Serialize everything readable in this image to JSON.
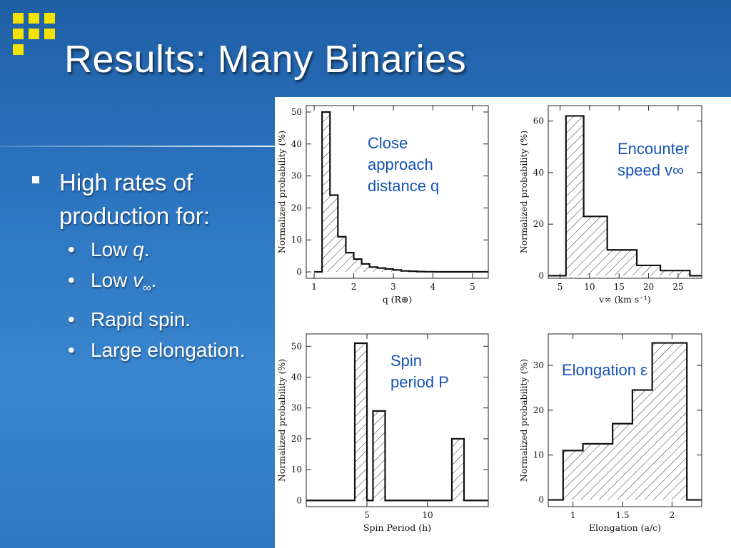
{
  "slide": {
    "title": "Results: Many Binaries",
    "bullet": "High rates of production for:",
    "sub_items": [
      {
        "prefix": "Low ",
        "var": "q",
        "sub": "",
        "suffix": "."
      },
      {
        "prefix": "Low ",
        "var": "v",
        "sub": "∞",
        "suffix": "."
      },
      {
        "prefix": "Rapid spin.",
        "var": "",
        "sub": "",
        "suffix": ""
      },
      {
        "prefix": "Large elongation.",
        "var": "",
        "sub": "",
        "suffix": ""
      }
    ],
    "bullet_glyph": "•"
  },
  "colors": {
    "logo": "#f4e200",
    "annotation": "#1553b5",
    "background": "#2c74bf"
  },
  "chart_data": [
    {
      "type": "bar",
      "title": "",
      "annotation": [
        "Close",
        "approach",
        "distance q"
      ],
      "xlabel": "q (R⊕)",
      "ylabel": "Normalized probability (%)",
      "xlim": [
        0.8,
        5.4
      ],
      "ylim": [
        -2,
        52
      ],
      "xticks": [
        1,
        2,
        3,
        4,
        5
      ],
      "yticks": [
        0,
        10,
        20,
        30,
        40,
        50
      ],
      "edges": [
        1.0,
        1.2,
        1.4,
        1.6,
        1.8,
        2.0,
        2.2,
        2.4,
        2.6,
        2.8,
        3.0,
        3.2,
        3.4,
        3.6,
        3.8,
        4.0,
        5.4
      ],
      "values": [
        0,
        50,
        24,
        11,
        6,
        4,
        2.5,
        1.5,
        1.2,
        0.9,
        0.6,
        0.3,
        0.2,
        0.1,
        0.05,
        0
      ]
    },
    {
      "type": "bar",
      "title": "",
      "annotation": [
        "Encounter",
        "speed v∞"
      ],
      "xlabel": "v∞ (km s⁻¹)",
      "ylabel": "Normalized probability (%)",
      "xlim": [
        3,
        29
      ],
      "ylim": [
        -1,
        66
      ],
      "xticks": [
        5,
        10,
        15,
        20,
        25
      ],
      "yticks": [
        0,
        20,
        40,
        60
      ],
      "edges": [
        3,
        6,
        9,
        13,
        18,
        22,
        27,
        29
      ],
      "values": [
        0,
        62,
        23,
        10,
        4,
        2,
        0
      ]
    },
    {
      "type": "bar",
      "title": "",
      "annotation": [
        "Spin",
        "period P"
      ],
      "xlabel": "Spin Period (h)",
      "ylabel": "Normalized probability (%)",
      "xlim": [
        0,
        15
      ],
      "ylim": [
        -2,
        54
      ],
      "xticks": [
        5,
        10
      ],
      "yticks": [
        0,
        10,
        20,
        30,
        40,
        50
      ],
      "edges": [
        0,
        4,
        5,
        5.5,
        6.5,
        12,
        13,
        15
      ],
      "values": [
        0,
        51,
        0,
        29,
        0,
        20,
        0
      ]
    },
    {
      "type": "bar",
      "title": "",
      "annotation": [
        "Elongation ε"
      ],
      "xlabel": "Elongation (a/c)",
      "ylabel": "Normalized probability (%)",
      "xlim": [
        0.75,
        2.3
      ],
      "ylim": [
        -1.5,
        37
      ],
      "xticks": [
        1,
        1.5,
        2
      ],
      "yticks": [
        0,
        10,
        20,
        30
      ],
      "edges": [
        0.75,
        0.9,
        1.1,
        1.4,
        1.6,
        1.8,
        2.0,
        2.15,
        2.3
      ],
      "values": [
        0,
        11,
        12.5,
        17,
        24.5,
        35,
        35,
        0
      ]
    }
  ]
}
